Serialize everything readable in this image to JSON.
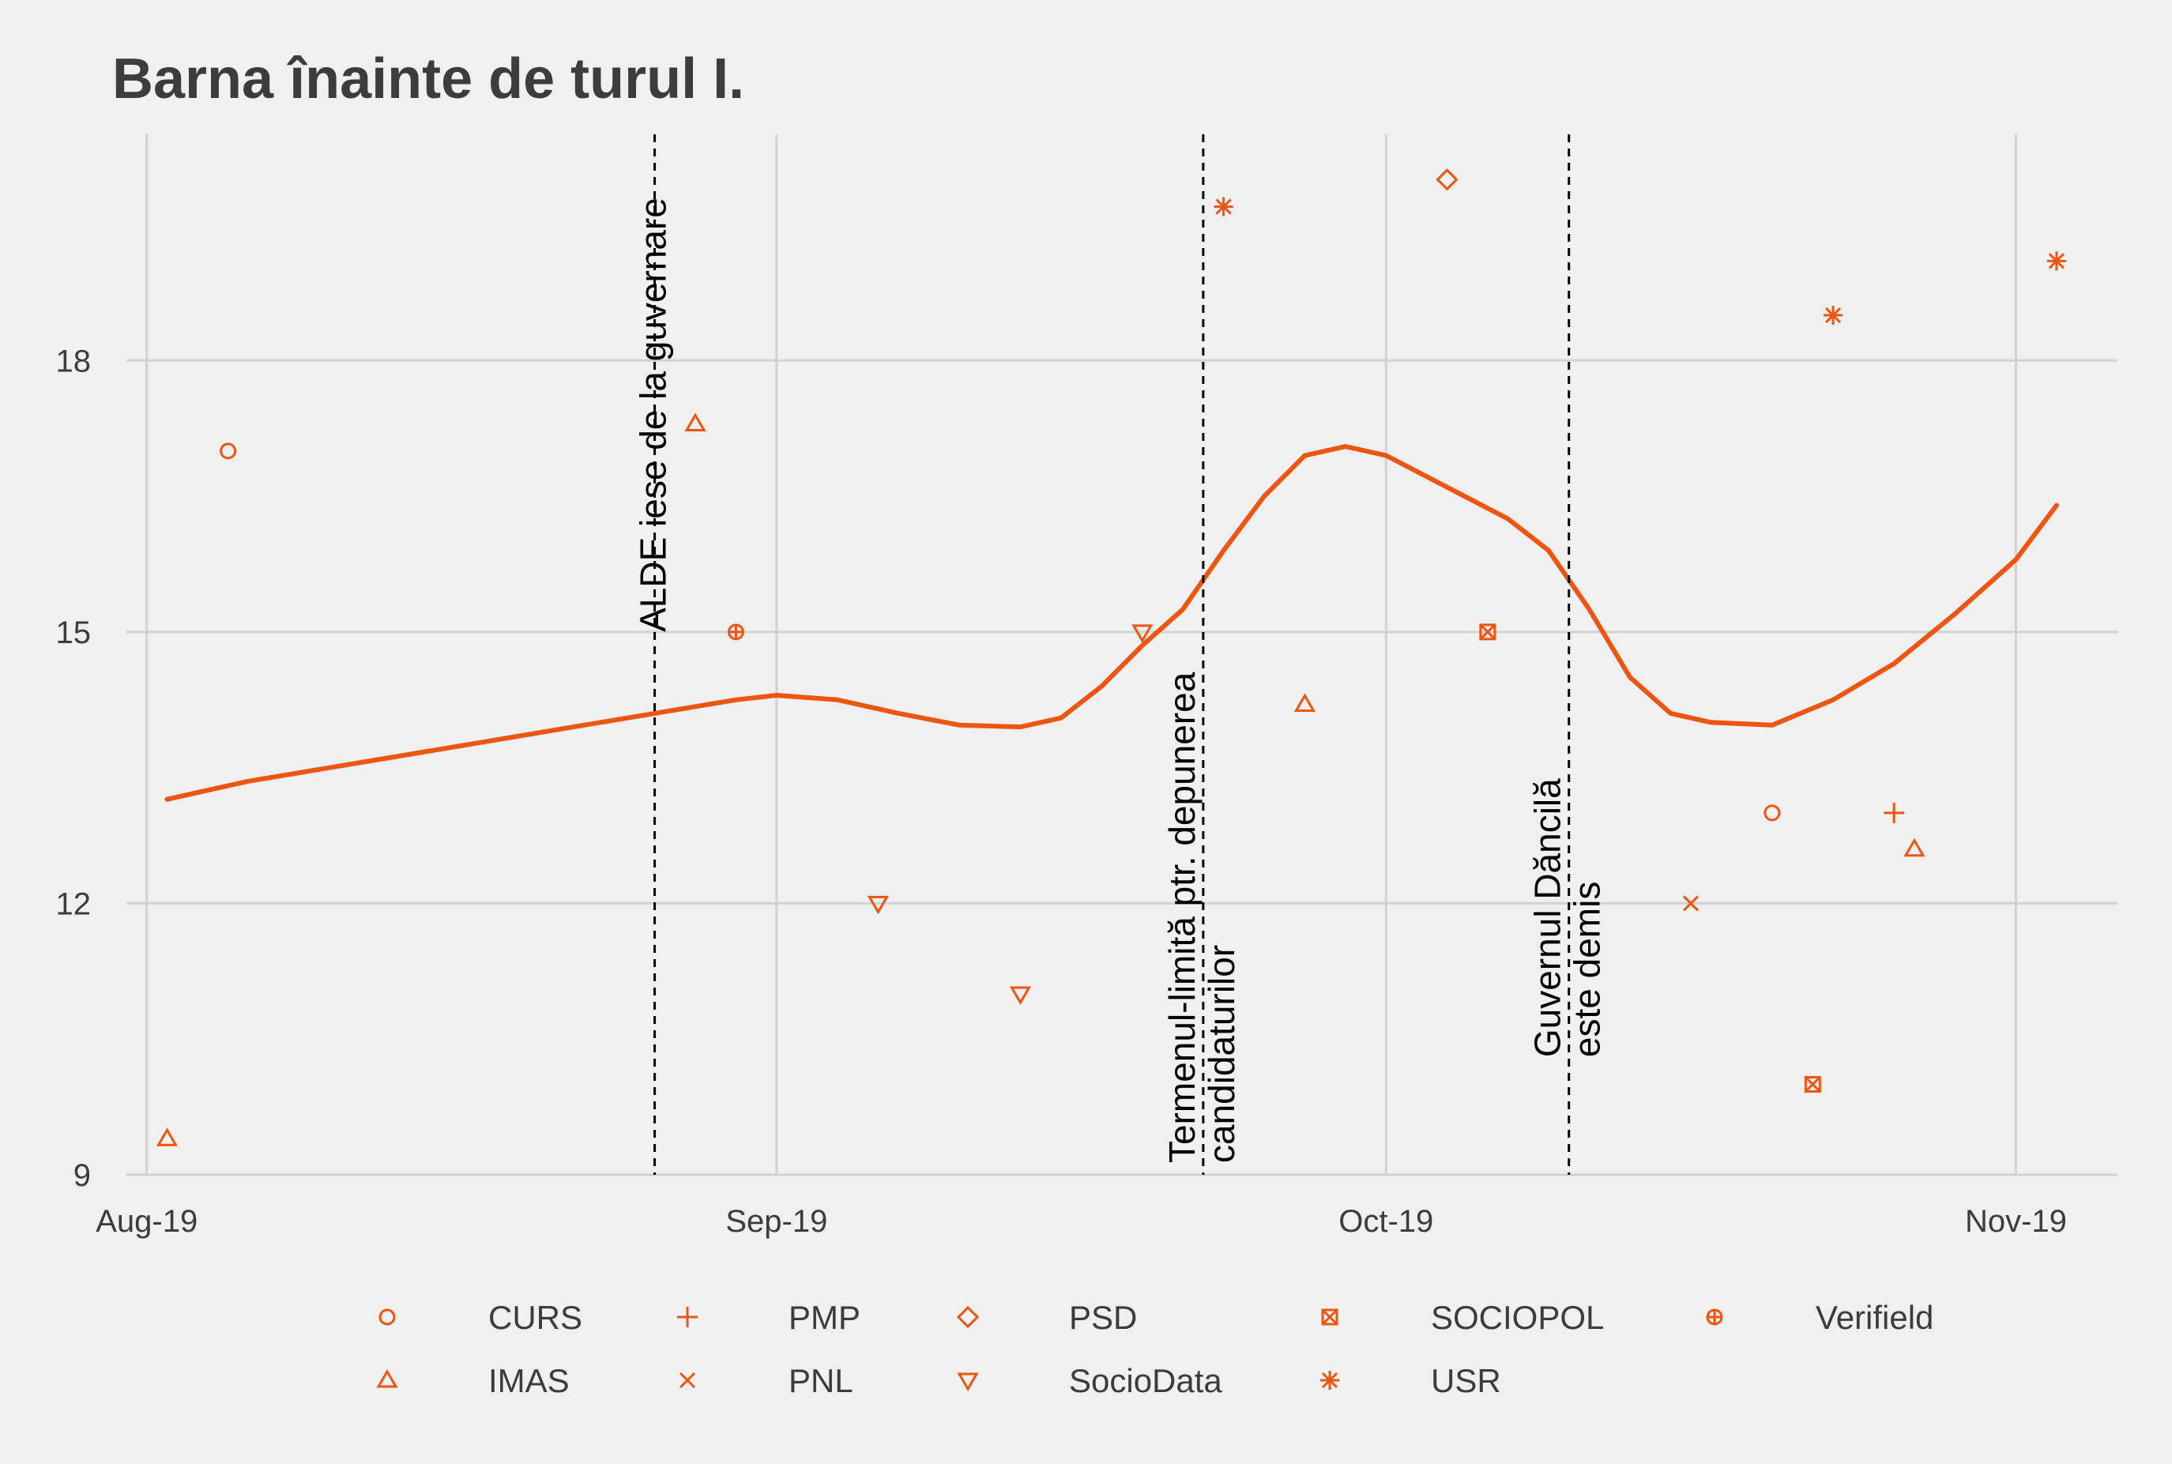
{
  "chart_data": {
    "type": "scatter",
    "title": "Barna înainte de turul I.",
    "xlabel": "",
    "ylabel": "",
    "x_axis_type": "date",
    "xlim": [
      "2019-07-31",
      "2019-11-06"
    ],
    "ylim": [
      9,
      20.5
    ],
    "x_ticks": [
      {
        "date": "2019-08-01",
        "label": "Aug-19"
      },
      {
        "date": "2019-09-01",
        "label": "Sep-19"
      },
      {
        "date": "2019-10-01",
        "label": "Oct-19"
      },
      {
        "date": "2019-11-01",
        "label": "Nov-19"
      }
    ],
    "y_ticks": [
      9,
      12,
      15,
      18
    ],
    "grid": true,
    "legend_position": "bottom",
    "color": "#ee5511",
    "series": [
      {
        "name": "CURS",
        "shape": "circle",
        "points": [
          [
            "2019-08-05",
            17.0
          ],
          [
            "2019-10-20",
            13.0
          ]
        ]
      },
      {
        "name": "IMAS",
        "shape": "triangle-up",
        "points": [
          [
            "2019-08-02",
            9.4
          ],
          [
            "2019-08-28",
            17.3
          ],
          [
            "2019-09-27",
            14.2
          ],
          [
            "2019-10-27",
            12.6
          ]
        ]
      },
      {
        "name": "PMP",
        "shape": "plus",
        "points": [
          [
            "2019-10-26",
            13.0
          ]
        ]
      },
      {
        "name": "PNL",
        "shape": "cross",
        "points": [
          [
            "2019-10-16",
            12.0
          ]
        ]
      },
      {
        "name": "PSD",
        "shape": "diamond",
        "points": [
          [
            "2019-10-04",
            20.0
          ]
        ]
      },
      {
        "name": "SocioData",
        "shape": "triangle-down",
        "points": [
          [
            "2019-09-06",
            12.0
          ],
          [
            "2019-09-13",
            11.0
          ],
          [
            "2019-09-19",
            15.0
          ]
        ]
      },
      {
        "name": "SOCIOPOL",
        "shape": "square-cross",
        "points": [
          [
            "2019-10-06",
            15.0
          ],
          [
            "2019-10-22",
            10.0
          ]
        ]
      },
      {
        "name": "USR",
        "shape": "asterisk",
        "points": [
          [
            "2019-09-23",
            19.7
          ],
          [
            "2019-10-23",
            18.5
          ],
          [
            "2019-11-03",
            19.1
          ]
        ]
      },
      {
        "name": "Verifield",
        "shape": "circle-plus",
        "points": [
          [
            "2019-08-30",
            15.0
          ]
        ]
      }
    ],
    "trend_line": [
      [
        "2019-08-02",
        13.15
      ],
      [
        "2019-08-06",
        13.35
      ],
      [
        "2019-08-10",
        13.5
      ],
      [
        "2019-08-14",
        13.65
      ],
      [
        "2019-08-18",
        13.8
      ],
      [
        "2019-08-22",
        13.95
      ],
      [
        "2019-08-26",
        14.1
      ],
      [
        "2019-08-30",
        14.25
      ],
      [
        "2019-09-01",
        14.3
      ],
      [
        "2019-09-04",
        14.25
      ],
      [
        "2019-09-07",
        14.1
      ],
      [
        "2019-09-10",
        13.97
      ],
      [
        "2019-09-13",
        13.95
      ],
      [
        "2019-09-15",
        14.05
      ],
      [
        "2019-09-17",
        14.4
      ],
      [
        "2019-09-19",
        14.85
      ],
      [
        "2019-09-21",
        15.25
      ],
      [
        "2019-09-23",
        15.9
      ],
      [
        "2019-09-25",
        16.5
      ],
      [
        "2019-09-27",
        16.95
      ],
      [
        "2019-09-29",
        17.05
      ],
      [
        "2019-10-01",
        16.95
      ],
      [
        "2019-10-04",
        16.6
      ],
      [
        "2019-10-07",
        16.25
      ],
      [
        "2019-10-09",
        15.9
      ],
      [
        "2019-10-11",
        15.25
      ],
      [
        "2019-10-13",
        14.5
      ],
      [
        "2019-10-15",
        14.1
      ],
      [
        "2019-10-17",
        14.0
      ],
      [
        "2019-10-20",
        13.97
      ],
      [
        "2019-10-23",
        14.25
      ],
      [
        "2019-10-26",
        14.65
      ],
      [
        "2019-10-29",
        15.2
      ],
      [
        "2019-11-01",
        15.8
      ],
      [
        "2019-11-03",
        16.4
      ]
    ],
    "annotations": [
      {
        "date": "2019-08-26",
        "lines": [
          "ALDE iese de la guvernare"
        ]
      },
      {
        "date": "2019-09-22",
        "lines": [
          "Termenul-limită ptr. depunerea",
          "candidaturilor"
        ]
      },
      {
        "date": "2019-10-10",
        "lines": [
          "Guvernul Dăncilă",
          "este demis"
        ]
      }
    ]
  }
}
